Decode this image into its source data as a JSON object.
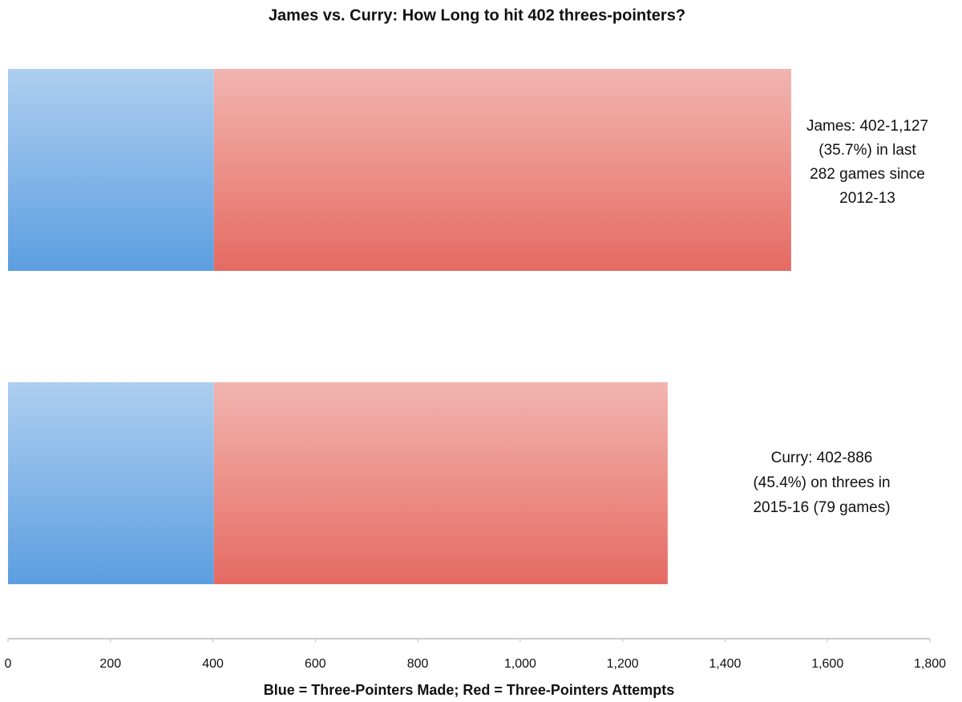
{
  "chart_data": {
    "type": "stacked-barh",
    "title": "James vs. Curry: How Long to hit 402 threes-pointers?",
    "x_label": "Blue = Three-Pointers Made; Red = Three-Pointers Attempts",
    "categories": [
      null,
      null
    ],
    "series": [
      {
        "color": "#5b9ee0",
        "values": [
          402,
          402
        ]
      },
      {
        "color": "#e46a62",
        "values": [
          1127,
          886
        ]
      }
    ],
    "annotations": [
      [
        "James: 402-1,127",
        "(35.7%) in last",
        "282 games since",
        "2012-13"
      ],
      [
        "Curry: 402-886",
        "(45.4%) on threes in",
        "2015-16 (79 games)"
      ]
    ],
    "xlim": [
      0,
      1800
    ],
    "xticks": [
      0,
      200,
      400,
      600,
      800,
      {
        "value": 1000,
        "label": "1,000"
      },
      {
        "value": 1200,
        "label": "1,200"
      },
      {
        "value": 1400,
        "label": "1,400"
      },
      {
        "value": 1600,
        "label": "1,600"
      },
      {
        "value": 1800,
        "label": "1,800"
      }
    ],
    "grid": false
  }
}
